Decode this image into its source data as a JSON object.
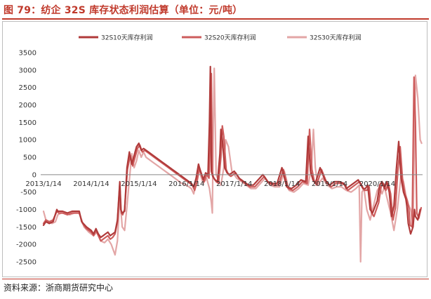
{
  "figure_title": "图 79：纺企 32S 库存状态利润估算（单位：元/吨）",
  "source_note": "资料来源：浙商期货研究中心",
  "colors": {
    "title": "#c0392b",
    "series": [
      "#b03a3a",
      "#cd5c5c",
      "#e3a6a6"
    ]
  },
  "chart_data": {
    "type": "line",
    "title": "",
    "xlabel": "",
    "ylabel": "",
    "ylim": [
      -2500,
      3500
    ],
    "yticks": [
      3500,
      3000,
      2500,
      2000,
      1500,
      1000,
      500,
      0,
      -500,
      -1000,
      -1500,
      -2000,
      -2500
    ],
    "x_tick_labels": [
      "2013/1/14",
      "2014/1/14",
      "2015/1/14",
      "2016/1/14",
      "2017/1/14",
      "2018/1/14",
      "2019/1/14",
      "2020/1/14"
    ],
    "xlim": [
      2013.0,
      2020.95
    ],
    "grid": false,
    "legend_position": "top-center",
    "series": [
      {
        "name": "32S10天库存利润",
        "x": [
          2013.0,
          2013.05,
          2013.12,
          2013.2,
          2013.28,
          2013.3,
          2013.4,
          2013.5,
          2013.6,
          2013.75,
          2013.8,
          2013.9,
          2014.0,
          2014.05,
          2014.1,
          2014.15,
          2014.2,
          2014.25,
          2014.3,
          2014.35,
          2014.4,
          2014.45,
          2014.5,
          2014.55,
          2014.6,
          2014.62,
          2014.65,
          2014.7,
          2014.75,
          2014.8,
          2014.85,
          2014.9,
          2014.95,
          2015.0,
          2015.05,
          2015.1,
          2015.2,
          2015.3,
          2015.4,
          2015.5,
          2015.6,
          2015.7,
          2015.8,
          2015.9,
          2016.0,
          2016.1,
          2016.15,
          2016.2,
          2016.25,
          2016.3,
          2016.35,
          2016.4,
          2016.45,
          2016.48,
          2016.5,
          2016.52,
          2016.55,
          2016.6,
          2016.65,
          2016.7,
          2016.72,
          2016.75,
          2016.8,
          2016.85,
          2016.9,
          2017.0,
          2017.1,
          2017.2,
          2017.3,
          2017.4,
          2017.5,
          2017.6,
          2017.7,
          2017.8,
          2017.9,
          2018.0,
          2018.1,
          2018.2,
          2018.3,
          2018.4,
          2018.5,
          2018.55,
          2018.6,
          2018.65,
          2018.7,
          2018.8,
          2018.9,
          2019.0,
          2019.1,
          2019.2,
          2019.3,
          2019.35,
          2019.4,
          2019.5,
          2019.6,
          2019.7,
          2019.75,
          2019.8,
          2019.85,
          2019.9,
          2020.0,
          2020.05,
          2020.1,
          2020.15,
          2020.2,
          2020.25,
          2020.3,
          2020.35,
          2020.4,
          2020.45,
          2020.5,
          2020.55,
          2020.6,
          2020.62,
          2020.65,
          2020.7,
          2020.75,
          2020.78,
          2020.8,
          2020.85,
          2020.9
        ],
        "values": [
          -1450,
          -1350,
          -1400,
          -1350,
          -1000,
          -1050,
          -1050,
          -1100,
          -1050,
          -1050,
          -1350,
          -1500,
          -1600,
          -1700,
          -1550,
          -1700,
          -1800,
          -1750,
          -1700,
          -1650,
          -1750,
          -1700,
          -1650,
          -1300,
          -200,
          -1000,
          -1100,
          -1050,
          200,
          650,
          300,
          550,
          800,
          900,
          700,
          750,
          650,
          550,
          450,
          350,
          250,
          150,
          50,
          -50,
          -150,
          -250,
          -350,
          -100,
          300,
          50,
          -150,
          50,
          0,
          1500,
          3100,
          100,
          -50,
          -150,
          -200,
          600,
          1300,
          1000,
          200,
          50,
          0,
          100,
          -100,
          -200,
          -300,
          -300,
          -150,
          0,
          -200,
          -250,
          -250,
          200,
          -350,
          -400,
          -300,
          -150,
          -200,
          1100,
          100,
          -150,
          -250,
          200,
          -150,
          -300,
          -200,
          -200,
          -250,
          -400,
          -350,
          -250,
          -150,
          -400,
          -400,
          -300,
          -1000,
          -1100,
          -750,
          -300,
          -200,
          -400,
          -200,
          -500,
          -1200,
          -900,
          150,
          950,
          -100,
          -500,
          -700,
          -900,
          -1400,
          -1700,
          -1500,
          -1000,
          -1200,
          -1300,
          -1000
        ]
      },
      {
        "name": "32S20天库存利润",
        "x": [
          2013.0,
          2013.05,
          2013.12,
          2013.2,
          2013.28,
          2013.32,
          2013.4,
          2013.5,
          2013.6,
          2013.75,
          2013.82,
          2013.9,
          2014.0,
          2014.05,
          2014.1,
          2014.15,
          2014.2,
          2014.25,
          2014.3,
          2014.35,
          2014.4,
          2014.45,
          2014.5,
          2014.55,
          2014.6,
          2014.63,
          2014.66,
          2014.7,
          2014.76,
          2014.82,
          2014.87,
          2014.92,
          2014.97,
          2015.02,
          2015.07,
          2015.12,
          2015.22,
          2015.32,
          2015.42,
          2015.52,
          2015.62,
          2015.72,
          2015.82,
          2015.92,
          2016.02,
          2016.12,
          2016.17,
          2016.22,
          2016.27,
          2016.32,
          2016.37,
          2016.42,
          2016.47,
          2016.5,
          2016.52,
          2016.54,
          2016.57,
          2016.62,
          2016.67,
          2016.72,
          2016.75,
          2016.78,
          2016.83,
          2016.88,
          2016.93,
          2017.03,
          2017.13,
          2017.23,
          2017.33,
          2017.43,
          2017.53,
          2017.63,
          2017.73,
          2017.83,
          2017.93,
          2018.03,
          2018.13,
          2018.23,
          2018.33,
          2018.43,
          2018.53,
          2018.58,
          2018.63,
          2018.68,
          2018.73,
          2018.83,
          2018.93,
          2019.03,
          2019.13,
          2019.23,
          2019.33,
          2019.38,
          2019.43,
          2019.53,
          2019.63,
          2019.73,
          2019.78,
          2019.83,
          2019.88,
          2019.93,
          2020.03,
          2020.08,
          2020.13,
          2020.18,
          2020.23,
          2020.28,
          2020.33,
          2020.38,
          2020.43,
          2020.48,
          2020.53,
          2020.58,
          2020.63,
          2020.66,
          2020.69,
          2020.73,
          2020.77,
          2020.8,
          2020.83,
          2020.87,
          2020.92
        ],
        "values": [
          -1400,
          -1300,
          -1350,
          -1300,
          -1050,
          -1100,
          -1100,
          -1150,
          -1100,
          -1100,
          -1400,
          -1550,
          -1650,
          -1750,
          -1600,
          -1750,
          -1900,
          -1850,
          -1800,
          -1750,
          -1850,
          -1800,
          -1700,
          -1350,
          -250,
          -1100,
          -1150,
          -1000,
          150,
          550,
          250,
          500,
          750,
          850,
          650,
          700,
          600,
          500,
          400,
          300,
          200,
          100,
          0,
          -100,
          -200,
          -300,
          -450,
          -200,
          200,
          0,
          -200,
          0,
          -100,
          1200,
          2900,
          50,
          -100,
          -200,
          -250,
          500,
          1400,
          1100,
          150,
          0,
          -50,
          50,
          -150,
          -250,
          -350,
          -350,
          -200,
          -50,
          -250,
          -300,
          -300,
          150,
          -400,
          -450,
          -350,
          -200,
          -250,
          1300,
          150,
          -200,
          -300,
          150,
          -200,
          -350,
          -250,
          -250,
          -300,
          -450,
          -400,
          -300,
          -200,
          -450,
          -450,
          -350,
          -1100,
          -1200,
          -800,
          -350,
          -250,
          -450,
          -250,
          -550,
          -1300,
          -950,
          100,
          800,
          -150,
          -550,
          -750,
          -950,
          -1450,
          -1500,
          2800,
          1500,
          -1100,
          -1250,
          -950
        ]
      },
      {
        "name": "32S30天库存利润",
        "x": [
          2013.0,
          2013.05,
          2013.1,
          2013.18,
          2013.25,
          2013.3,
          2013.37,
          2013.45,
          2013.55,
          2013.65,
          2013.75,
          2013.85,
          2013.95,
          2014.05,
          2014.12,
          2014.2,
          2014.28,
          2014.35,
          2014.42,
          2014.5,
          2014.55,
          2014.6,
          2014.65,
          2014.7,
          2014.75,
          2014.8,
          2014.85,
          2014.9,
          2014.95,
          2015.0,
          2015.05,
          2015.1,
          2015.15,
          2015.2,
          2015.3,
          2015.4,
          2015.5,
          2015.6,
          2015.7,
          2015.8,
          2015.9,
          2016.0,
          2016.1,
          2016.15,
          2016.2,
          2016.25,
          2016.3,
          2016.35,
          2016.42,
          2016.48,
          2016.52,
          2016.54,
          2016.56,
          2016.58,
          2016.62,
          2016.68,
          2016.72,
          2016.78,
          2016.82,
          2016.88,
          2016.95,
          2017.05,
          2017.15,
          2017.25,
          2017.35,
          2017.45,
          2017.55,
          2017.65,
          2017.75,
          2017.85,
          2017.95,
          2018.05,
          2018.15,
          2018.25,
          2018.35,
          2018.45,
          2018.55,
          2018.62,
          2018.66,
          2018.7,
          2018.75,
          2018.85,
          2018.95,
          2019.05,
          2019.15,
          2019.25,
          2019.35,
          2019.45,
          2019.55,
          2019.62,
          2019.65,
          2019.68,
          2019.72,
          2019.78,
          2019.85,
          2019.92,
          2020.0,
          2020.05,
          2020.1,
          2020.15,
          2020.2,
          2020.28,
          2020.35,
          2020.42,
          2020.5,
          2020.55,
          2020.6,
          2020.65,
          2020.7,
          2020.75,
          2020.8,
          2020.85,
          2020.9,
          2020.93
        ],
        "values": [
          -1050,
          -1300,
          -1350,
          -1400,
          -1350,
          -1150,
          -1100,
          -1100,
          -1150,
          -1100,
          -1100,
          -1500,
          -1650,
          -1750,
          -1650,
          -1900,
          -1950,
          -1850,
          -2000,
          -2300,
          -1900,
          -600,
          -1500,
          -1600,
          -900,
          -150,
          600,
          200,
          400,
          700,
          500,
          650,
          500,
          450,
          350,
          250,
          150,
          50,
          -50,
          -150,
          -250,
          -300,
          -400,
          -550,
          -200,
          300,
          -50,
          -250,
          -100,
          -400,
          -800,
          -1100,
          1200,
          3050,
          0,
          -200,
          -300,
          200,
          1000,
          800,
          100,
          -100,
          -200,
          -300,
          -400,
          -400,
          -250,
          -100,
          -300,
          -350,
          -350,
          100,
          -450,
          -500,
          -400,
          -250,
          -300,
          200,
          1300,
          200,
          -300,
          -100,
          -300,
          -400,
          -350,
          -350,
          -450,
          -500,
          -400,
          -300,
          -2500,
          -500,
          -400,
          -1000,
          -1300,
          -900,
          -450,
          -350,
          -550,
          -350,
          -650,
          -1100,
          -1600,
          -1000,
          0,
          -200,
          -600,
          -850,
          -1000,
          -1500,
          2850,
          2200,
          1000,
          900
        ]
      }
    ]
  }
}
